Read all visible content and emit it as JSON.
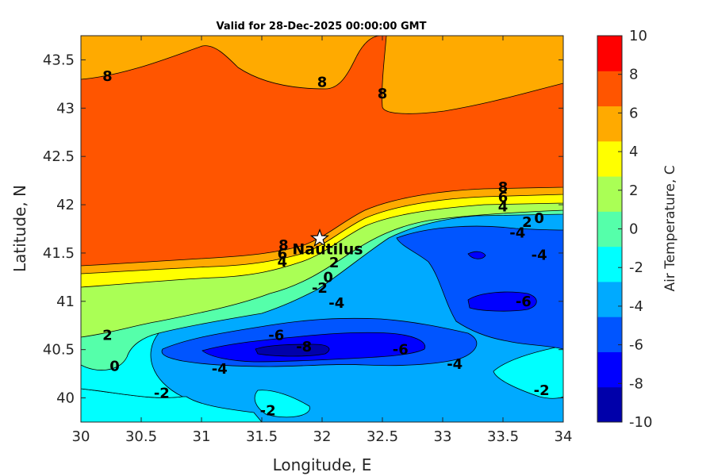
{
  "chart_data": {
    "type": "filled-contour",
    "title": "Valid for 28-Dec-2025 00:00:00 GMT",
    "xlabel": "Longitude, E",
    "ylabel": "Latitude, N",
    "xlim": [
      30,
      34
    ],
    "ylim": [
      39.75,
      43.75
    ],
    "xticks": [
      "30",
      "30.5",
      "31",
      "31.5",
      "32",
      "32.5",
      "33",
      "33.5",
      "34"
    ],
    "yticks": [
      "40",
      "40.5",
      "41",
      "41.5",
      "42",
      "42.5",
      "43",
      "43.5"
    ],
    "colorbar": {
      "label": "Air Temperature, C",
      "range": [
        -10,
        10
      ],
      "ticks": [
        "-10",
        "-8",
        "-6",
        "-4",
        "-2",
        "0",
        "2",
        "4",
        "6",
        "8",
        "10"
      ],
      "colors": [
        "#0000aa",
        "#0000ff",
        "#0055ff",
        "#00aaff",
        "#00ffff",
        "#55ffaa",
        "#aaff55",
        "#ffff00",
        "#ffaa00",
        "#ff5500",
        "#ff0000"
      ]
    },
    "contour_labels": [
      {
        "text": "8",
        "lon": 30.22,
        "lat": 43.33
      },
      {
        "text": "8",
        "lon": 32.0,
        "lat": 43.27
      },
      {
        "text": "8",
        "lon": 32.5,
        "lat": 43.15
      },
      {
        "text": "8",
        "lon": 33.5,
        "lat": 42.18
      },
      {
        "text": "6",
        "lon": 33.5,
        "lat": 42.08
      },
      {
        "text": "4",
        "lon": 33.5,
        "lat": 41.98
      },
      {
        "text": "2",
        "lon": 33.7,
        "lat": 41.82
      },
      {
        "text": "0",
        "lon": 33.8,
        "lat": 41.86
      },
      {
        "text": "-4",
        "lon": 33.62,
        "lat": 41.71
      },
      {
        "text": "-4",
        "lon": 33.8,
        "lat": 41.48
      },
      {
        "text": "8",
        "lon": 31.68,
        "lat": 41.58
      },
      {
        "text": "6",
        "lon": 31.67,
        "lat": 41.49
      },
      {
        "text": "4",
        "lon": 31.67,
        "lat": 41.41
      },
      {
        "text": "2",
        "lon": 32.1,
        "lat": 41.4
      },
      {
        "text": "0",
        "lon": 32.05,
        "lat": 41.25
      },
      {
        "text": "-2",
        "lon": 31.98,
        "lat": 41.14
      },
      {
        "text": "-4",
        "lon": 32.12,
        "lat": 40.98
      },
      {
        "text": "2",
        "lon": 30.22,
        "lat": 40.65
      },
      {
        "text": "0",
        "lon": 30.28,
        "lat": 40.33
      },
      {
        "text": "-6",
        "lon": 31.62,
        "lat": 40.65
      },
      {
        "text": "-8",
        "lon": 31.85,
        "lat": 40.53
      },
      {
        "text": "-6",
        "lon": 32.65,
        "lat": 40.5
      },
      {
        "text": "-4",
        "lon": 31.15,
        "lat": 40.3
      },
      {
        "text": "-4",
        "lon": 33.1,
        "lat": 40.35
      },
      {
        "text": "-6",
        "lon": 33.67,
        "lat": 41.0
      },
      {
        "text": "-2",
        "lon": 30.67,
        "lat": 40.05
      },
      {
        "text": "-2",
        "lon": 31.55,
        "lat": 39.87
      },
      {
        "text": "-2",
        "lon": 33.82,
        "lat": 40.08
      }
    ],
    "station": {
      "name": "Nautilus",
      "lon": 31.98,
      "lat": 41.65,
      "marker": "star"
    }
  }
}
